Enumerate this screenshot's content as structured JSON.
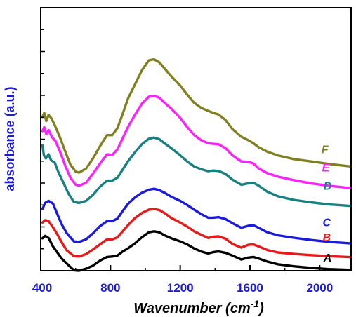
{
  "chart_data": {
    "type": "line",
    "xlabel": "Wavenumber (cm",
    "xlabel_sup": "-1",
    "xlabel_close": ")",
    "ylabel": "absorbance (a.u.)",
    "xlim": [
      400,
      2180
    ],
    "ylim": [
      0,
      13
    ],
    "x_ticks": [
      400,
      800,
      1200,
      1600,
      2000
    ],
    "x_tick_labels": [
      "400",
      "800",
      "1200",
      "1600",
      "2000"
    ],
    "y_tick_labels_shown": false,
    "label_color": "#1a1adb",
    "series": [
      {
        "name": "A",
        "color": "#000000",
        "points": [
          [
            410,
            1.6
          ],
          [
            425,
            1.72
          ],
          [
            445,
            1.62
          ],
          [
            470,
            1.2
          ],
          [
            495,
            0.9
          ],
          [
            520,
            0.6
          ],
          [
            550,
            0.35
          ],
          [
            590,
            0.02
          ],
          [
            620,
            0.0
          ],
          [
            660,
            0.1
          ],
          [
            700,
            0.25
          ],
          [
            740,
            0.5
          ],
          [
            780,
            0.68
          ],
          [
            810,
            0.7
          ],
          [
            840,
            0.75
          ],
          [
            870,
            0.95
          ],
          [
            900,
            1.1
          ],
          [
            940,
            1.35
          ],
          [
            980,
            1.65
          ],
          [
            1020,
            1.9
          ],
          [
            1050,
            1.95
          ],
          [
            1080,
            1.9
          ],
          [
            1110,
            1.75
          ],
          [
            1150,
            1.6
          ],
          [
            1200,
            1.45
          ],
          [
            1240,
            1.3
          ],
          [
            1280,
            1.1
          ],
          [
            1320,
            0.95
          ],
          [
            1360,
            0.85
          ],
          [
            1390,
            0.92
          ],
          [
            1420,
            0.95
          ],
          [
            1460,
            0.88
          ],
          [
            1500,
            0.75
          ],
          [
            1550,
            0.55
          ],
          [
            1590,
            0.65
          ],
          [
            1620,
            0.68
          ],
          [
            1650,
            0.6
          ],
          [
            1700,
            0.45
          ],
          [
            1760,
            0.32
          ],
          [
            1850,
            0.22
          ],
          [
            1950,
            0.14
          ],
          [
            2050,
            0.08
          ],
          [
            2180,
            0.04
          ]
        ]
      },
      {
        "name": "B",
        "color": "#e81919",
        "points": [
          [
            410,
            2.38
          ],
          [
            425,
            2.5
          ],
          [
            445,
            2.45
          ],
          [
            470,
            2.15
          ],
          [
            495,
            1.8
          ],
          [
            520,
            1.4
          ],
          [
            550,
            1.0
          ],
          [
            590,
            0.72
          ],
          [
            620,
            0.7
          ],
          [
            660,
            0.82
          ],
          [
            700,
            1.05
          ],
          [
            740,
            1.3
          ],
          [
            780,
            1.55
          ],
          [
            810,
            1.55
          ],
          [
            840,
            1.65
          ],
          [
            870,
            1.95
          ],
          [
            900,
            2.25
          ],
          [
            940,
            2.6
          ],
          [
            980,
            2.85
          ],
          [
            1020,
            3.02
          ],
          [
            1050,
            3.05
          ],
          [
            1080,
            3.0
          ],
          [
            1110,
            2.85
          ],
          [
            1150,
            2.6
          ],
          [
            1200,
            2.38
          ],
          [
            1240,
            2.18
          ],
          [
            1280,
            1.95
          ],
          [
            1320,
            1.78
          ],
          [
            1360,
            1.62
          ],
          [
            1390,
            1.68
          ],
          [
            1420,
            1.7
          ],
          [
            1460,
            1.58
          ],
          [
            1500,
            1.32
          ],
          [
            1550,
            1.14
          ],
          [
            1590,
            1.28
          ],
          [
            1620,
            1.3
          ],
          [
            1650,
            1.2
          ],
          [
            1700,
            1.02
          ],
          [
            1760,
            0.9
          ],
          [
            1850,
            0.83
          ],
          [
            1950,
            0.77
          ],
          [
            2050,
            0.72
          ],
          [
            2180,
            0.67
          ]
        ]
      },
      {
        "name": "C",
        "color": "#1a1adb",
        "points": [
          [
            410,
            3.05
          ],
          [
            425,
            3.35
          ],
          [
            445,
            3.45
          ],
          [
            470,
            3.32
          ],
          [
            495,
            2.8
          ],
          [
            520,
            2.3
          ],
          [
            550,
            1.85
          ],
          [
            590,
            1.45
          ],
          [
            620,
            1.42
          ],
          [
            660,
            1.55
          ],
          [
            700,
            1.85
          ],
          [
            740,
            2.2
          ],
          [
            780,
            2.45
          ],
          [
            810,
            2.45
          ],
          [
            840,
            2.58
          ],
          [
            870,
            2.95
          ],
          [
            900,
            3.3
          ],
          [
            940,
            3.62
          ],
          [
            980,
            3.85
          ],
          [
            1020,
            4.0
          ],
          [
            1050,
            4.05
          ],
          [
            1080,
            3.98
          ],
          [
            1110,
            3.85
          ],
          [
            1150,
            3.65
          ],
          [
            1200,
            3.45
          ],
          [
            1240,
            3.25
          ],
          [
            1280,
            3.02
          ],
          [
            1320,
            2.8
          ],
          [
            1360,
            2.62
          ],
          [
            1390,
            2.62
          ],
          [
            1420,
            2.65
          ],
          [
            1460,
            2.55
          ],
          [
            1500,
            2.35
          ],
          [
            1550,
            2.12
          ],
          [
            1590,
            2.22
          ],
          [
            1620,
            2.25
          ],
          [
            1650,
            2.12
          ],
          [
            1700,
            1.9
          ],
          [
            1760,
            1.75
          ],
          [
            1850,
            1.63
          ],
          [
            1950,
            1.52
          ],
          [
            2050,
            1.43
          ],
          [
            2180,
            1.35
          ]
        ]
      },
      {
        "name": "D",
        "color": "#178080",
        "points": [
          [
            410,
            6.2
          ],
          [
            418,
            5.7
          ],
          [
            430,
            5.55
          ],
          [
            445,
            5.75
          ],
          [
            460,
            5.45
          ],
          [
            480,
            5.35
          ],
          [
            500,
            4.9
          ],
          [
            530,
            4.35
          ],
          [
            560,
            3.8
          ],
          [
            590,
            3.4
          ],
          [
            620,
            3.35
          ],
          [
            660,
            3.45
          ],
          [
            700,
            3.75
          ],
          [
            740,
            4.15
          ],
          [
            780,
            4.45
          ],
          [
            810,
            4.45
          ],
          [
            840,
            4.6
          ],
          [
            870,
            5.0
          ],
          [
            900,
            5.4
          ],
          [
            940,
            5.85
          ],
          [
            980,
            6.25
          ],
          [
            1020,
            6.52
          ],
          [
            1050,
            6.58
          ],
          [
            1080,
            6.5
          ],
          [
            1110,
            6.3
          ],
          [
            1150,
            6.05
          ],
          [
            1200,
            5.7
          ],
          [
            1240,
            5.4
          ],
          [
            1280,
            5.15
          ],
          [
            1320,
            5.02
          ],
          [
            1360,
            4.92
          ],
          [
            1390,
            4.95
          ],
          [
            1420,
            4.93
          ],
          [
            1460,
            4.78
          ],
          [
            1500,
            4.5
          ],
          [
            1550,
            4.25
          ],
          [
            1590,
            4.32
          ],
          [
            1620,
            4.35
          ],
          [
            1650,
            4.2
          ],
          [
            1700,
            3.9
          ],
          [
            1760,
            3.68
          ],
          [
            1850,
            3.5
          ],
          [
            1950,
            3.38
          ],
          [
            2050,
            3.28
          ],
          [
            2180,
            3.2
          ]
        ]
      },
      {
        "name": "E",
        "color": "#ff22ff",
        "points": [
          [
            410,
            6.9
          ],
          [
            420,
            7.1
          ],
          [
            432,
            6.75
          ],
          [
            445,
            6.95
          ],
          [
            465,
            6.6
          ],
          [
            485,
            6.4
          ],
          [
            510,
            5.9
          ],
          [
            540,
            5.2
          ],
          [
            570,
            4.6
          ],
          [
            600,
            4.25
          ],
          [
            620,
            4.2
          ],
          [
            660,
            4.35
          ],
          [
            700,
            4.8
          ],
          [
            740,
            5.3
          ],
          [
            780,
            5.75
          ],
          [
            810,
            5.72
          ],
          [
            840,
            6.0
          ],
          [
            870,
            6.55
          ],
          [
            900,
            7.1
          ],
          [
            940,
            7.7
          ],
          [
            980,
            8.25
          ],
          [
            1020,
            8.6
          ],
          [
            1050,
            8.65
          ],
          [
            1080,
            8.55
          ],
          [
            1110,
            8.3
          ],
          [
            1150,
            8.0
          ],
          [
            1200,
            7.55
          ],
          [
            1240,
            7.1
          ],
          [
            1280,
            6.7
          ],
          [
            1320,
            6.45
          ],
          [
            1360,
            6.3
          ],
          [
            1390,
            6.27
          ],
          [
            1420,
            6.25
          ],
          [
            1460,
            6.05
          ],
          [
            1500,
            5.7
          ],
          [
            1550,
            5.4
          ],
          [
            1590,
            5.38
          ],
          [
            1620,
            5.3
          ],
          [
            1650,
            5.05
          ],
          [
            1700,
            4.82
          ],
          [
            1760,
            4.65
          ],
          [
            1850,
            4.48
          ],
          [
            1950,
            4.32
          ],
          [
            2050,
            4.2
          ],
          [
            2180,
            4.08
          ]
        ]
      },
      {
        "name": "F",
        "color": "#808020",
        "points": [
          [
            410,
            7.6
          ],
          [
            420,
            7.8
          ],
          [
            432,
            7.4
          ],
          [
            445,
            7.7
          ],
          [
            460,
            7.55
          ],
          [
            480,
            7.2
          ],
          [
            510,
            6.6
          ],
          [
            540,
            5.9
          ],
          [
            570,
            5.25
          ],
          [
            600,
            4.9
          ],
          [
            620,
            4.85
          ],
          [
            660,
            5.05
          ],
          [
            700,
            5.55
          ],
          [
            740,
            6.15
          ],
          [
            780,
            6.7
          ],
          [
            810,
            6.7
          ],
          [
            840,
            7.05
          ],
          [
            870,
            7.75
          ],
          [
            900,
            8.5
          ],
          [
            940,
            9.2
          ],
          [
            980,
            9.9
          ],
          [
            1020,
            10.4
          ],
          [
            1050,
            10.45
          ],
          [
            1080,
            10.3
          ],
          [
            1110,
            10.0
          ],
          [
            1150,
            9.6
          ],
          [
            1200,
            9.15
          ],
          [
            1240,
            8.7
          ],
          [
            1280,
            8.3
          ],
          [
            1320,
            8.05
          ],
          [
            1360,
            7.9
          ],
          [
            1390,
            7.8
          ],
          [
            1420,
            7.72
          ],
          [
            1460,
            7.45
          ],
          [
            1500,
            7.0
          ],
          [
            1550,
            6.62
          ],
          [
            1590,
            6.45
          ],
          [
            1620,
            6.3
          ],
          [
            1650,
            6.1
          ],
          [
            1700,
            5.88
          ],
          [
            1760,
            5.7
          ],
          [
            1850,
            5.52
          ],
          [
            1950,
            5.4
          ],
          [
            2050,
            5.28
          ],
          [
            2180,
            5.15
          ]
        ]
      }
    ],
    "series_labels": [
      {
        "name": "A",
        "x": 2045,
        "y": 0.45
      },
      {
        "name": "B",
        "x": 2040,
        "y": 1.45
      },
      {
        "name": "C",
        "x": 2040,
        "y": 2.2
      },
      {
        "name": "D",
        "x": 2045,
        "y": 4.0
      },
      {
        "name": "E",
        "x": 2035,
        "y": 4.9
      },
      {
        "name": "F",
        "x": 2030,
        "y": 5.8
      }
    ]
  }
}
